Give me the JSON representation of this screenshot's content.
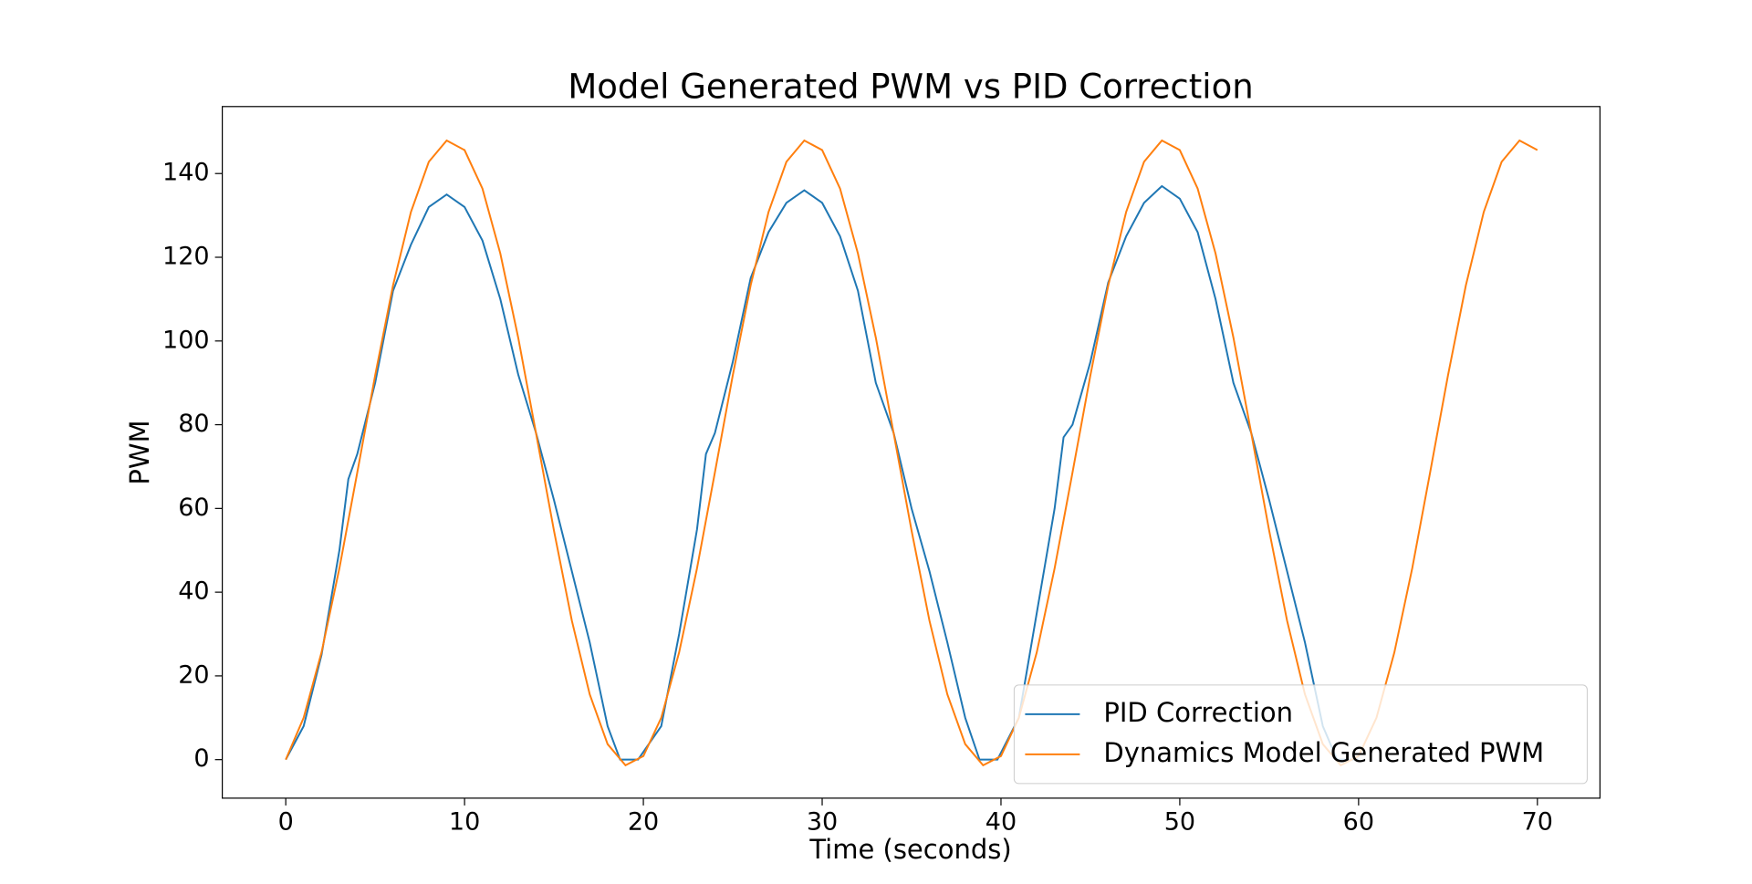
{
  "chart_data": {
    "type": "line",
    "title": "Model Generated PWM vs PID Correction",
    "xlabel": "Time (seconds)",
    "ylabel": "PWM",
    "xlim": [
      -3.55,
      73.5
    ],
    "ylim": [
      -9.2,
      156
    ],
    "xticks": [
      0,
      10,
      20,
      30,
      40,
      50,
      60,
      70
    ],
    "yticks": [
      0,
      20,
      40,
      60,
      80,
      100,
      120,
      140
    ],
    "legend": "lower right",
    "grid": false,
    "series": [
      {
        "name": "PID Correction",
        "color": "#1f77b4",
        "x": [
          0,
          1,
          2,
          3,
          3.5,
          4,
          5,
          6,
          7,
          8,
          9,
          10,
          11,
          12,
          13,
          14,
          15,
          16,
          17,
          18,
          18.7,
          19.7,
          21,
          22,
          23,
          23.5,
          24,
          25,
          26,
          27,
          28,
          29,
          30,
          31,
          32,
          33,
          34,
          35,
          36,
          37,
          38,
          38.8,
          39.8,
          41,
          42,
          43,
          43.5,
          44,
          45,
          46,
          47,
          48,
          49,
          50,
          51,
          52,
          53,
          54,
          55,
          56,
          57,
          58,
          58.8,
          60
        ],
        "values": [
          0,
          8,
          25,
          50,
          67,
          73,
          90,
          112,
          123,
          132,
          135,
          132,
          124,
          110,
          92,
          78,
          62,
          45,
          28,
          8,
          0,
          0,
          8,
          30,
          55,
          73,
          78,
          95,
          115,
          126,
          133,
          136,
          133,
          125,
          112,
          90,
          78,
          60,
          45,
          28,
          10,
          0,
          0,
          10,
          35,
          60,
          77,
          80,
          95,
          114,
          125,
          133,
          137,
          134,
          126,
          110,
          90,
          78,
          62,
          45,
          28,
          8,
          0,
          0
        ]
      },
      {
        "name": "Dynamics Model Generated PWM",
        "color": "#ff7f0e",
        "x": [
          0,
          1,
          2,
          3,
          4,
          5,
          6,
          7,
          8,
          9,
          10,
          11,
          12,
          13,
          14,
          15,
          16,
          17,
          18,
          19,
          20,
          21,
          22,
          23,
          24,
          25,
          26,
          27,
          28,
          29,
          30,
          31,
          32,
          33,
          34,
          35,
          36,
          37,
          38,
          39,
          40,
          41,
          42,
          43,
          44,
          45,
          46,
          47,
          48,
          49,
          50,
          51,
          52,
          53,
          54,
          55,
          56,
          57,
          58,
          59,
          60,
          61,
          62,
          63,
          64,
          65,
          66,
          67,
          68,
          69,
          70
        ],
        "values": [
          0,
          10,
          25.6,
          45.7,
          68.6,
          91.8,
          113.3,
          130.8,
          142.8,
          147.9,
          145.6,
          136.4,
          120.9,
          100.8,
          77.9,
          54.7,
          33.2,
          15.6,
          3.7,
          -1.35,
          0.85,
          10,
          25.6,
          45.7,
          68.6,
          91.8,
          113.3,
          130.8,
          142.8,
          147.9,
          145.6,
          136.4,
          120.9,
          100.8,
          77.9,
          54.7,
          33.2,
          15.6,
          3.7,
          -1.35,
          0.85,
          10,
          25.6,
          45.7,
          68.6,
          91.8,
          113.3,
          130.8,
          142.8,
          147.9,
          145.6,
          136.4,
          120.9,
          100.8,
          77.9,
          54.7,
          33.2,
          15.6,
          3.7,
          -1.35,
          0.85,
          10,
          25.6,
          45.7,
          68.6,
          91.8,
          113.3,
          130.8,
          142.8,
          147.9,
          145.6
        ]
      }
    ]
  }
}
